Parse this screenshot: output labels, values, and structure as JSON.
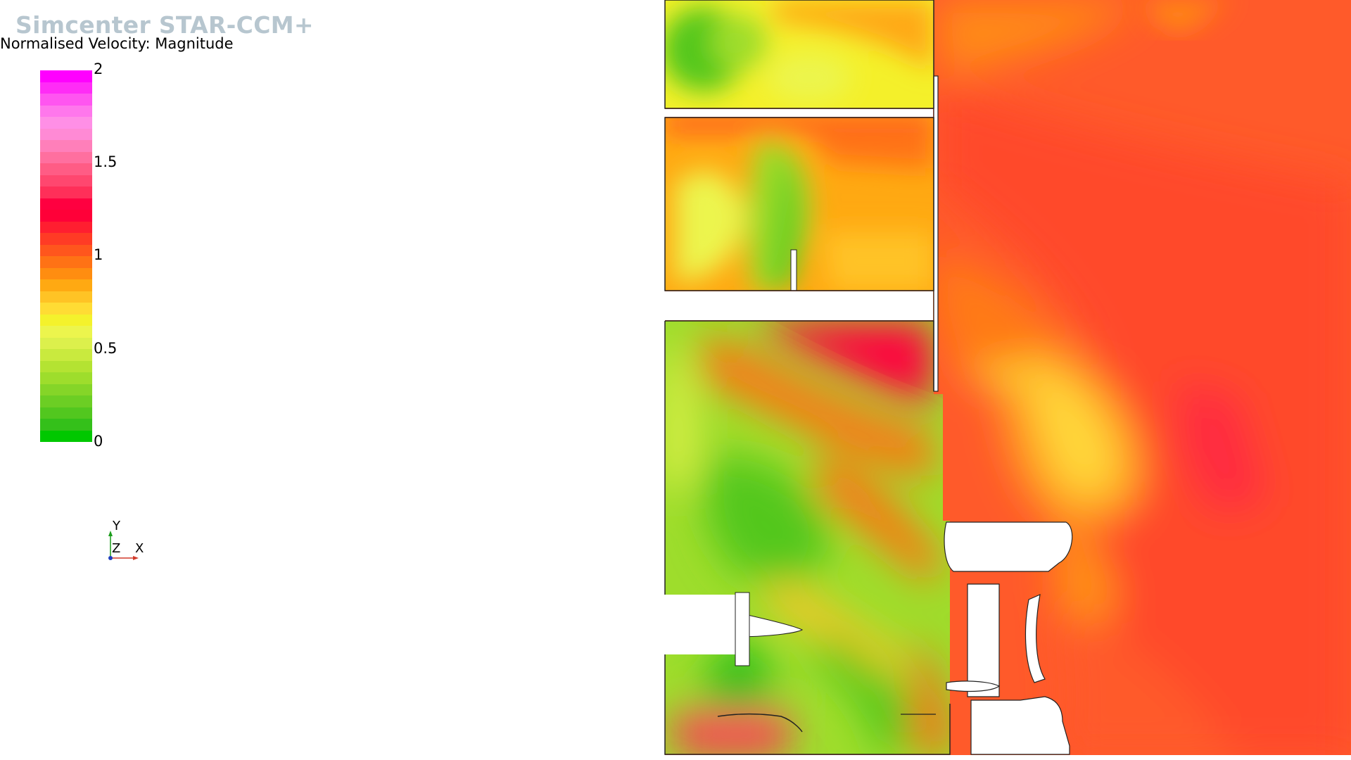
{
  "app": {
    "brand": "Simcenter STAR-CCM+"
  },
  "scalar": {
    "title": "Normalised Velocity: Magnitude",
    "ticks": [
      "2",
      "1.5",
      "1",
      "0.5",
      "0"
    ],
    "bands_top_to_bottom": [
      "#ff00ff",
      "#ff2cf6",
      "#ff55f0",
      "#ff77ec",
      "#ff8fe6",
      "#ff8ad5",
      "#ff7fba",
      "#ff6f9f",
      "#ff5c85",
      "#ff476f",
      "#ff2f59",
      "#ff0040",
      "#ff0038",
      "#ff1e30",
      "#ff3b25",
      "#ff561d",
      "#ff7215",
      "#ff8d10",
      "#ffa912",
      "#ffc325",
      "#ffdc34",
      "#f4f22c",
      "#ecf54d",
      "#dcf04c",
      "#c9ea3e",
      "#b4e332",
      "#9edd2c",
      "#85d528",
      "#6cce24",
      "#52c71f",
      "#34c01a",
      "#00c800"
    ]
  },
  "triad": {
    "y": "Y",
    "z": "Z",
    "x": "X",
    "y_color": "#1a9c1a",
    "x_color": "#d23a2a",
    "z_color": "#1f3fbf"
  }
}
